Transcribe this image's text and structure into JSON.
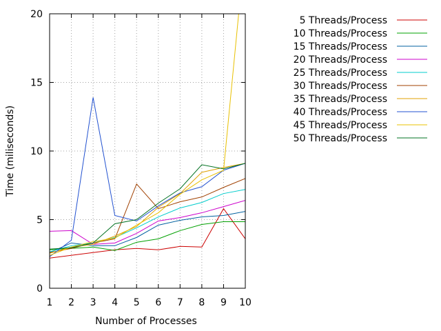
{
  "chart_data": {
    "type": "line",
    "title": "",
    "xlabel": "Number of Processes",
    "ylabel": "Time (miliseconds)",
    "xlim": [
      1,
      10
    ],
    "ylim": [
      0,
      20
    ],
    "xticks": [
      1,
      2,
      3,
      4,
      5,
      6,
      7,
      8,
      9,
      10
    ],
    "yticks": [
      0,
      5,
      10,
      15,
      20
    ],
    "grid": true,
    "legend_position": "top-right outside",
    "x": [
      1,
      2,
      3,
      4,
      5,
      6,
      7,
      8,
      9,
      10
    ],
    "series": [
      {
        "name": "5 Threads/Process",
        "color": "#cc0000",
        "values": [
          2.2,
          2.4,
          2.6,
          2.8,
          2.9,
          2.8,
          3.05,
          3.0,
          5.8,
          3.6
        ]
      },
      {
        "name": "10 Threads/Process",
        "color": "#00a000",
        "values": [
          2.8,
          2.9,
          3.0,
          2.75,
          3.35,
          3.6,
          4.2,
          4.65,
          4.85,
          4.85
        ]
      },
      {
        "name": "15 Threads/Process",
        "color": "#0060a0",
        "values": [
          2.6,
          3.3,
          3.1,
          3.1,
          3.7,
          4.6,
          4.95,
          5.2,
          5.3,
          5.6
        ]
      },
      {
        "name": "20 Threads/Process",
        "color": "#cc00cc",
        "values": [
          4.15,
          4.2,
          3.2,
          3.3,
          4.0,
          4.9,
          5.15,
          5.5,
          5.95,
          6.4
        ]
      },
      {
        "name": "25 Threads/Process",
        "color": "#00cccc",
        "values": [
          2.65,
          3.1,
          3.3,
          3.7,
          4.4,
          5.2,
          5.85,
          6.25,
          6.9,
          7.2
        ]
      },
      {
        "name": "30 Threads/Process",
        "color": "#a04000",
        "values": [
          2.6,
          2.9,
          3.3,
          3.6,
          7.6,
          5.8,
          6.3,
          6.65,
          7.35,
          8.0
        ]
      },
      {
        "name": "35 Threads/Process",
        "color": "#e0a000",
        "values": [
          2.55,
          3.0,
          3.2,
          3.8,
          4.5,
          5.9,
          6.9,
          8.45,
          8.8,
          9.1
        ]
      },
      {
        "name": "40 Threads/Process",
        "color": "#2050d0",
        "values": [
          2.3,
          3.5,
          13.9,
          5.3,
          4.9,
          6.0,
          6.95,
          7.4,
          8.6,
          9.1
        ]
      },
      {
        "name": "45 Threads/Process",
        "color": "#e8c000",
        "values": [
          2.4,
          3.0,
          3.4,
          3.65,
          4.6,
          5.5,
          6.85,
          7.9,
          8.6,
          25.0
        ]
      },
      {
        "name": "50 Threads/Process",
        "color": "#007020",
        "values": [
          2.85,
          2.95,
          3.3,
          4.7,
          5.0,
          6.2,
          7.25,
          9.0,
          8.7,
          9.1
        ]
      }
    ]
  }
}
